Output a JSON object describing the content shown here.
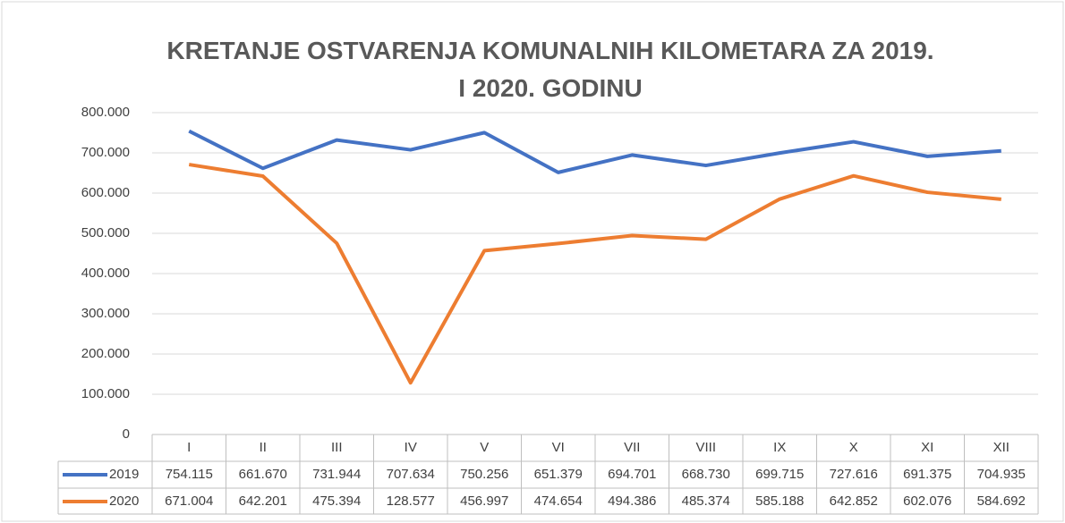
{
  "chart_data": {
    "type": "line",
    "title": "KRETANJE OSTVARENJA KOMUNALNIH KILOMETARA ZA 2019. I 2020. GODINU",
    "categories": [
      "I",
      "II",
      "III",
      "IV",
      "V",
      "VI",
      "VII",
      "VIII",
      "IX",
      "X",
      "XI",
      "XII"
    ],
    "series": [
      {
        "name": "2019",
        "color": "#4472c4",
        "values": [
          754115,
          661670,
          731944,
          707634,
          750256,
          651379,
          694701,
          668730,
          699715,
          727616,
          691375,
          704935
        ],
        "value_labels": [
          "754.115",
          "661.670",
          "731.944",
          "707.634",
          "750.256",
          "651.379",
          "694.701",
          "668.730",
          "699.715",
          "727.616",
          "691.375",
          "704.935"
        ]
      },
      {
        "name": "2020",
        "color": "#ed7d31",
        "values": [
          671004,
          642201,
          475394,
          128577,
          456997,
          474654,
          494386,
          485374,
          585188,
          642852,
          602076,
          584692
        ],
        "value_labels": [
          "671.004",
          "642.201",
          "475.394",
          "128.577",
          "456.997",
          "474.654",
          "494.386",
          "485.374",
          "585.188",
          "642.852",
          "602.076",
          "584.692"
        ]
      }
    ],
    "ylim": [
      0,
      800000
    ],
    "yticks": [
      0,
      {
        "value": 100000,
        "label": "100.000"
      },
      {
        "value": 200000,
        "label": "200.000"
      },
      {
        "value": 300000,
        "label": "300.000"
      },
      {
        "value": 400000,
        "label": "400.000"
      },
      {
        "value": 500000,
        "label": "500.000"
      },
      {
        "value": 600000,
        "label": "600.000"
      },
      {
        "value": 700000,
        "label": "700.000"
      },
      {
        "value": 800000,
        "label": "800.000"
      }
    ],
    "grid": true
  }
}
